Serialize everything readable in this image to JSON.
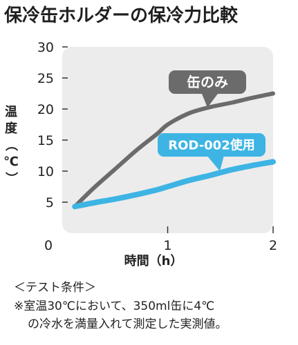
{
  "title": "保冷缶ホルダーの保冷力比較",
  "chart_data": {
    "type": "line",
    "title": "保冷缶ホルダーの保冷力比較",
    "xlabel": "時間（h）",
    "ylabel": "温度（℃）",
    "ylabel_chars": [
      "温",
      "度",
      "（",
      "℃",
      "）"
    ],
    "xlim": [
      0,
      2
    ],
    "ylim": [
      0,
      30
    ],
    "x_ticks": [
      0,
      1,
      2
    ],
    "x_tick_labels": [
      "0",
      "1",
      "2"
    ],
    "y_ticks": [
      5,
      10,
      15,
      20,
      25,
      30
    ],
    "y_tick_labels": [
      "5",
      "10",
      "15",
      "20",
      "25",
      "30"
    ],
    "grid": false,
    "series": [
      {
        "name": "缶のみ",
        "color": "#6b6b6b",
        "x": [
          0.12,
          0.3,
          0.5,
          0.7,
          0.9,
          1.0,
          1.2,
          1.4,
          1.6,
          1.8,
          2.0
        ],
        "y": [
          4.3,
          7.3,
          10.3,
          13.3,
          16.0,
          17.5,
          19.3,
          20.3,
          21.0,
          21.8,
          22.5
        ]
      },
      {
        "name": "ROD-002使用",
        "color": "#3db4e3",
        "x": [
          0.12,
          0.3,
          0.5,
          0.7,
          0.9,
          1.0,
          1.2,
          1.4,
          1.6,
          1.8,
          2.0
        ],
        "y": [
          4.3,
          4.9,
          5.5,
          6.2,
          7.0,
          7.5,
          8.5,
          9.3,
          10.2,
          10.9,
          11.5
        ]
      }
    ]
  },
  "notes": {
    "line1": "＜テスト条件＞",
    "line2": "※室温30℃において、350ml缶に4℃",
    "line3": "の冷水を満量入れて測定した実測値。"
  }
}
